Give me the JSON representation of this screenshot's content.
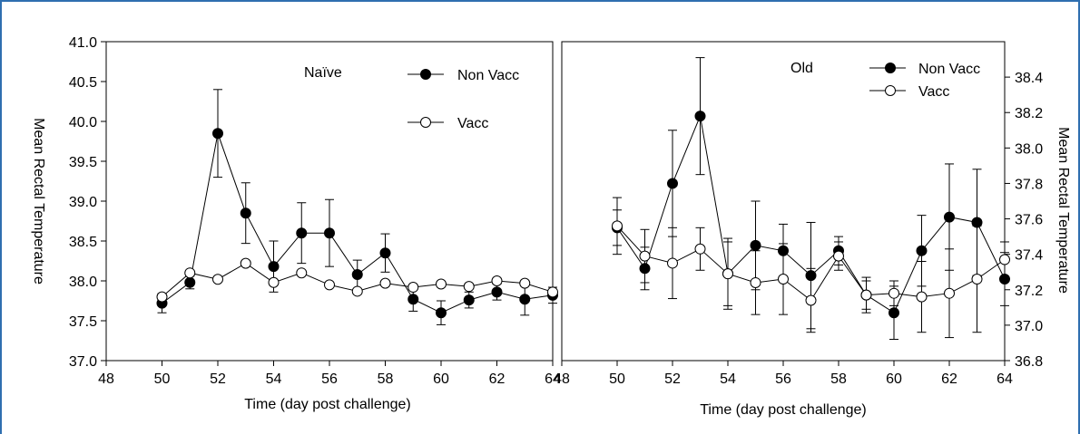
{
  "chart_data": [
    {
      "type": "line",
      "title": "Naïve",
      "xlabel": "Time (day post challenge)",
      "ylabel": "Mean Rectal Temperature",
      "xlim": [
        48,
        64
      ],
      "ylim": [
        37.0,
        41.0
      ],
      "xticks": [
        "48",
        "50",
        "52",
        "54",
        "56",
        "58",
        "60",
        "62",
        "64"
      ],
      "yticks": [
        "37.0",
        "37.5",
        "38.0",
        "38.5",
        "39.0",
        "39.5",
        "40.0",
        "40.5",
        "41.0"
      ],
      "y_axis_side": "left",
      "legend": "top-right",
      "grid": false,
      "x": [
        50,
        51,
        52,
        53,
        54,
        55,
        56,
        57,
        58,
        59,
        60,
        61,
        62,
        63,
        64
      ],
      "series": [
        {
          "name": "Non Vacc",
          "marker": "filled-circle",
          "values": [
            37.72,
            37.98,
            39.85,
            38.85,
            38.18,
            38.6,
            38.6,
            38.08,
            38.35,
            37.77,
            37.6,
            37.76,
            37.86,
            37.77,
            37.82
          ],
          "error": [
            0.12,
            0.08,
            0.55,
            0.38,
            0.32,
            0.38,
            0.42,
            0.18,
            0.24,
            0.15,
            0.15,
            0.1,
            0.1,
            0.2,
            0.1
          ]
        },
        {
          "name": "Vacc",
          "marker": "open-circle",
          "values": [
            37.8,
            38.1,
            38.02,
            38.22,
            37.98,
            38.1,
            37.95,
            37.87,
            37.97,
            37.92,
            37.96,
            37.93,
            38.0,
            37.97,
            37.86
          ]
        }
      ]
    },
    {
      "type": "line",
      "title": "Old",
      "xlabel": "Time (day post challenge)",
      "ylabel": "Mean Rectal Temperature",
      "xlim": [
        48,
        64
      ],
      "ylim": [
        36.8,
        38.6
      ],
      "xticks": [
        "48",
        "50",
        "52",
        "54",
        "56",
        "58",
        "60",
        "62",
        "64"
      ],
      "yticks": [
        "36.8",
        "37.0",
        "37.2",
        "37.4",
        "37.6",
        "37.8",
        "38.0",
        "38.2",
        "38.4"
      ],
      "y_axis_side": "right",
      "legend": "top-right",
      "grid": false,
      "x": [
        50,
        51,
        52,
        53,
        54,
        55,
        56,
        57,
        58,
        59,
        60,
        61,
        62,
        63,
        64
      ],
      "series": [
        {
          "name": "Non Vacc",
          "marker": "filled-circle",
          "values": [
            37.55,
            37.32,
            37.8,
            38.18,
            37.29,
            37.45,
            37.42,
            37.28,
            37.42,
            37.17,
            37.07,
            37.42,
            37.61,
            37.58,
            37.26
          ],
          "error": [
            0.1,
            0.12,
            0.3,
            0.33,
            0.18,
            0.25,
            0.15,
            0.3,
            0.08,
            0.08,
            0.15,
            0.2,
            0.3,
            0.3,
            0.15
          ]
        },
        {
          "name": "Vacc",
          "marker": "open-circle",
          "values": [
            37.56,
            37.39,
            37.35,
            37.43,
            37.29,
            37.24,
            37.26,
            37.14,
            37.39,
            37.17,
            37.18,
            37.16,
            37.18,
            37.26,
            37.37
          ],
          "error": [
            0.16,
            0.15,
            0.2,
            0.12,
            0.2,
            0.18,
            0.2,
            0.18,
            0.08,
            0.1,
            0.07,
            0.2,
            0.25,
            0.3,
            0.1
          ]
        }
      ]
    }
  ],
  "colors": {
    "frame": "#2f6fb0",
    "ink": "#000000",
    "open_fill": "#ffffff"
  }
}
